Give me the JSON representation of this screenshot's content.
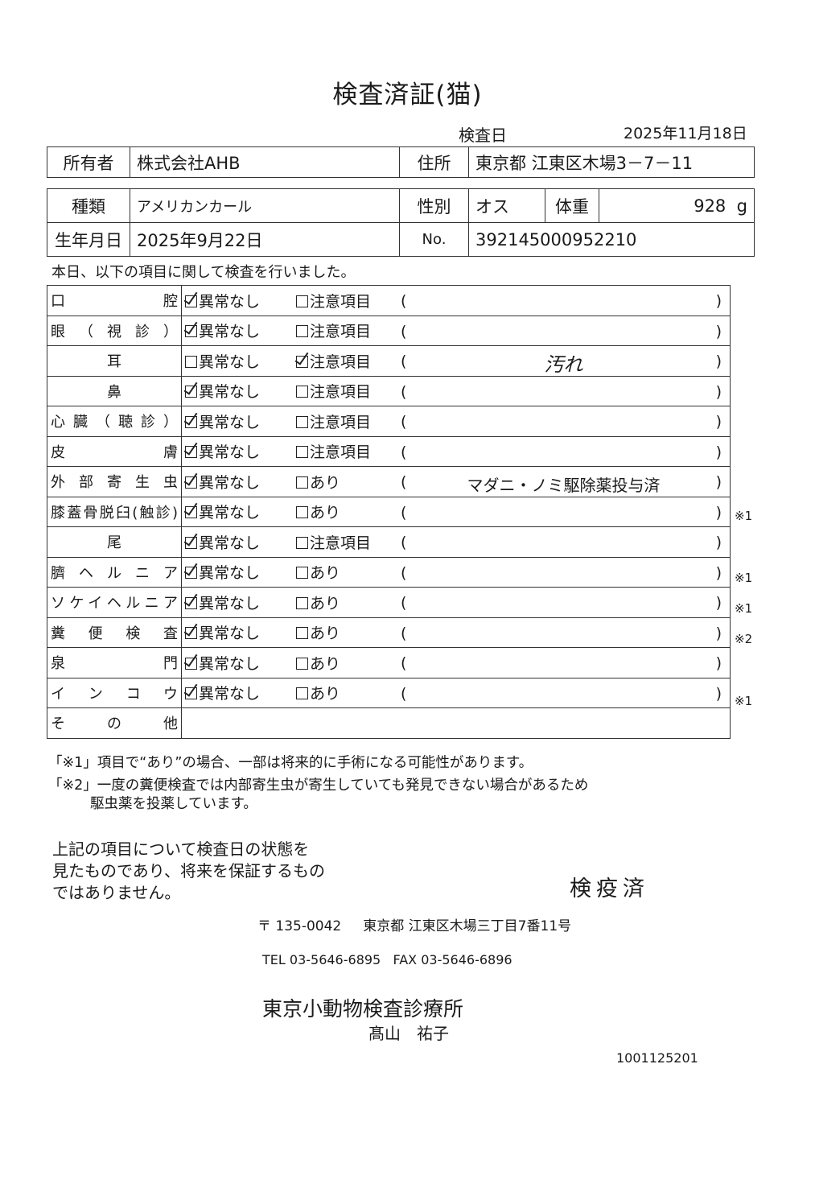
{
  "title": "検査済証(猫)",
  "exam_date": {
    "label": "検査日",
    "value": "2025年11月18日"
  },
  "owner": {
    "label": "所有者",
    "value": "株式会社AHB",
    "address_label": "住所",
    "address": "東京都 江東区木場3－7－11"
  },
  "pet": {
    "breed_label": "種類",
    "breed": "アメリカンカール",
    "sex_label": "性別",
    "sex": "オス",
    "weight_label": "体重",
    "weight": "928",
    "weight_unit": "g",
    "dob_label": "生年月日",
    "dob": "2025年9月22日",
    "no_label": "No.",
    "no": "392145000952210"
  },
  "intro": "本日、以下の項目に関して検査を行いました。",
  "option1": "異常なし",
  "rows": [
    {
      "label": "口腔",
      "checked": 1,
      "opt2": "注意項目",
      "note": "",
      "mark": ""
    },
    {
      "label": "眼（視診）",
      "checked": 1,
      "opt2": "注意項目",
      "note": "",
      "mark": ""
    },
    {
      "label": "耳",
      "checked": 2,
      "opt2": "注意項目",
      "note": "汚れ",
      "mark": "",
      "handwritten": true
    },
    {
      "label": "鼻",
      "checked": 1,
      "opt2": "注意項目",
      "note": "",
      "mark": ""
    },
    {
      "label": "心臓（聴診）",
      "checked": 1,
      "opt2": "注意項目",
      "note": "",
      "mark": ""
    },
    {
      "label": "皮膚",
      "checked": 1,
      "opt2": "注意項目",
      "note": "",
      "mark": ""
    },
    {
      "label": "外部寄生虫",
      "checked": 1,
      "opt2": "あり",
      "note": "マダニ・ノミ駆除薬投与済",
      "mark": ""
    },
    {
      "label": "膝蓋骨脱臼(触診)",
      "checked": 1,
      "opt2": "あり",
      "note": "",
      "mark": "※1"
    },
    {
      "label": "尾",
      "checked": 1,
      "opt2": "注意項目",
      "note": "",
      "mark": ""
    },
    {
      "label": "臍ヘルニア",
      "checked": 1,
      "opt2": "あり",
      "note": "",
      "mark": "※1"
    },
    {
      "label": "ソケイヘルニア",
      "checked": 1,
      "opt2": "あり",
      "note": "",
      "mark": "※1"
    },
    {
      "label": "糞便検査",
      "checked": 1,
      "opt2": "あり",
      "note": "",
      "mark": "※2"
    },
    {
      "label": "泉門",
      "checked": 1,
      "opt2": "あり",
      "note": "",
      "mark": ""
    },
    {
      "label": "インコウ",
      "checked": 1,
      "opt2": "あり",
      "note": "",
      "mark": "※1"
    }
  ],
  "other_label": "その他",
  "footnotes": [
    "「※1」項目で“あり”の場合、一部は将来的に手術になる可能性があります。",
    "「※2」一度の糞便検査では内部寄生虫が寄生していても発見できない場合があるため",
    "駆虫薬を投薬しています。"
  ],
  "statement": [
    "上記の項目について検査日の状態を",
    "見たものであり、将来を保証するもの",
    "ではありません。"
  ],
  "stamp": "検疫済",
  "clinic": {
    "postal": "〒 135-0042",
    "address": "東京都 江東区木場三丁目7番11号",
    "tel": "TEL 03-5646-6895",
    "fax": "FAX 03-5646-6896",
    "name": "東京小動物検査診療所",
    "person": "髙山　祐子"
  },
  "doc_code": "1001125201"
}
